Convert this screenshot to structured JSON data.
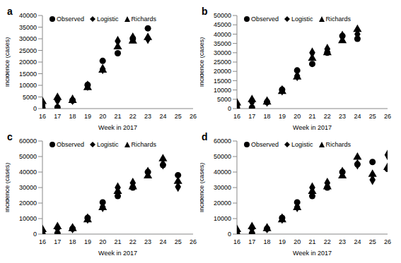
{
  "chart_data": [
    {
      "type": "scatter",
      "title": "a",
      "x_label": "Week in 2017",
      "y_label": "Incidence (cases)",
      "xlim": [
        16,
        26
      ],
      "xticks": [
        16,
        17,
        18,
        19,
        20,
        21,
        22,
        23,
        24,
        25,
        26
      ],
      "ylim": [
        0,
        40000
      ],
      "yticks": [
        0,
        5000,
        10000,
        15000,
        20000,
        25000,
        30000,
        35000,
        40000
      ],
      "legend": "top left",
      "grid": false,
      "x": [
        16,
        17,
        18,
        19,
        20,
        21,
        22,
        23
      ],
      "series": [
        {
          "name": "Observed",
          "color": "#000000",
          "marker": "circle",
          "values": [
            300,
            500,
            3500,
            10200,
            20500,
            23800,
            30000,
            34500
          ]
        },
        {
          "name": "Logistic",
          "color": "#000000",
          "marker": "diamond",
          "values": [
            1500,
            3500,
            3800,
            9800,
            17000,
            29000,
            30500,
            30000
          ]
        },
        {
          "name": "Richards",
          "color": "#000000",
          "marker": "triangle",
          "values": [
            3000,
            4800,
            3500,
            9000,
            16500,
            26500,
            29000,
            30500
          ]
        }
      ]
    },
    {
      "type": "scatter",
      "title": "b",
      "x_label": "Week in 2017",
      "y_label": "Incidence (cases)",
      "xlim": [
        16,
        26
      ],
      "xticks": [
        16,
        17,
        18,
        19,
        20,
        21,
        22,
        23,
        24,
        25,
        26
      ],
      "ylim": [
        0,
        50000
      ],
      "yticks": [
        0,
        5000,
        10000,
        15000,
        20000,
        25000,
        30000,
        35000,
        40000,
        45000,
        50000
      ],
      "legend": "top left",
      "grid": false,
      "x": [
        16,
        17,
        18,
        19,
        20,
        21,
        22,
        23,
        24
      ],
      "series": [
        {
          "name": "Observed",
          "color": "#000000",
          "marker": "circle",
          "values": [
            300,
            500,
            3500,
            10200,
            20500,
            24000,
            30000,
            39000,
            37500
          ]
        },
        {
          "name": "Logistic",
          "color": "#000000",
          "marker": "diamond",
          "values": [
            1500,
            3500,
            3800,
            9800,
            17500,
            30000,
            32000,
            39000,
            40000
          ]
        },
        {
          "name": "Richards",
          "color": "#000000",
          "marker": "triangle",
          "values": [
            3000,
            4800,
            3500,
            9200,
            17000,
            27000,
            30000,
            36500,
            42500
          ]
        }
      ]
    },
    {
      "type": "scatter",
      "title": "c",
      "x_label": "Week in 2017",
      "y_label": "Incidence (cases)",
      "xlim": [
        16,
        26
      ],
      "xticks": [
        16,
        17,
        18,
        19,
        20,
        21,
        22,
        23,
        24,
        25,
        26
      ],
      "ylim": [
        0,
        60000
      ],
      "yticks": [
        0,
        10000,
        20000,
        30000,
        40000,
        50000,
        60000
      ],
      "legend": "top left",
      "grid": false,
      "x": [
        16,
        17,
        18,
        19,
        20,
        21,
        22,
        23,
        24,
        25
      ],
      "series": [
        {
          "name": "Observed",
          "color": "#000000",
          "marker": "circle",
          "values": [
            300,
            500,
            3500,
            10500,
            20500,
            24500,
            30000,
            40000,
            44500,
            38000
          ]
        },
        {
          "name": "Logistic",
          "color": "#000000",
          "marker": "diamond",
          "values": [
            1500,
            3500,
            3800,
            10000,
            17500,
            30000,
            33000,
            40000,
            45000,
            30500
          ]
        },
        {
          "name": "Richards",
          "color": "#000000",
          "marker": "triangle",
          "values": [
            3000,
            4800,
            3500,
            9200,
            17000,
            27500,
            30500,
            37500,
            48500,
            34000
          ]
        }
      ]
    },
    {
      "type": "scatter",
      "title": "d",
      "x_label": "Week in 2017",
      "y_label": "Incidence (cases)",
      "xlim": [
        16,
        26
      ],
      "xticks": [
        16,
        17,
        18,
        19,
        20,
        21,
        22,
        23,
        24,
        25,
        26
      ],
      "ylim": [
        0,
        60000
      ],
      "yticks": [
        0,
        10000,
        20000,
        30000,
        40000,
        50000,
        60000
      ],
      "legend": "top left",
      "grid": false,
      "x": [
        16,
        17,
        18,
        19,
        20,
        21,
        22,
        23,
        24,
        25,
        26
      ],
      "series": [
        {
          "name": "Observed",
          "color": "#000000",
          "marker": "circle",
          "values": [
            300,
            500,
            3500,
            10500,
            20500,
            24500,
            30000,
            40000,
            45000,
            46500,
            42000
          ]
        },
        {
          "name": "Logistic",
          "color": "#000000",
          "marker": "diamond",
          "values": [
            1500,
            3500,
            3800,
            10000,
            17500,
            30000,
            33000,
            40000,
            45000,
            35000,
            51000
          ]
        },
        {
          "name": "Richards",
          "color": "#000000",
          "marker": "triangle",
          "values": [
            3000,
            4800,
            3500,
            9200,
            17000,
            27500,
            30500,
            37500,
            49500,
            38500,
            43000
          ]
        }
      ]
    }
  ]
}
